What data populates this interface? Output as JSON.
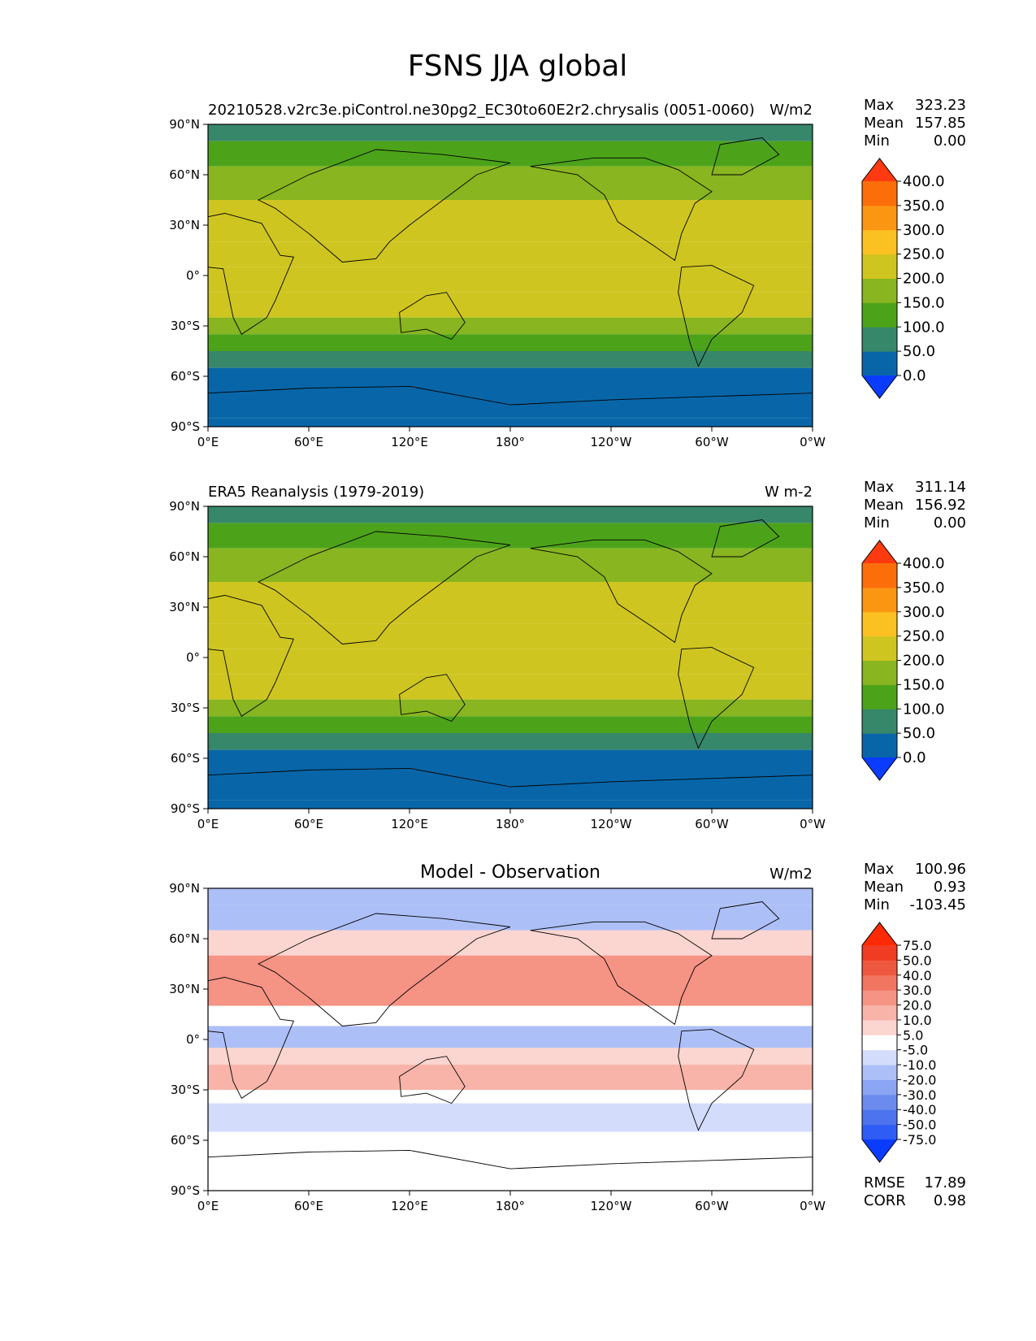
{
  "figure": {
    "title": "FSNS JJA global"
  },
  "chart_data": [
    {
      "type": "heatmap",
      "panel": "model",
      "title": "",
      "left_title": "20210528.v2rc3e.piControl.ne30pg2_EC30to60E2r2.chrysalis (0051-0060)",
      "units": "W/m2",
      "x_ticks": [
        "0°E",
        "60°E",
        "120°E",
        "180°",
        "120°W",
        "60°W",
        "0°W"
      ],
      "y_ticks": [
        "90°N",
        "60°N",
        "30°N",
        "0°",
        "30°S",
        "60°S",
        "90°S"
      ],
      "xlim": [
        0,
        360
      ],
      "ylim": [
        -90,
        90
      ],
      "stats": {
        "labels": [
          "Max",
          "Mean",
          "Min"
        ],
        "values": [
          "323.23",
          "157.85",
          "0.00"
        ]
      },
      "colorbar": {
        "levels": [
          "0.0",
          "50.0",
          "100.0",
          "150.0",
          "200.0",
          "250.0",
          "300.0",
          "350.0",
          "400.0"
        ],
        "colors": [
          "#0a3cff",
          "#0866a8",
          "#37876a",
          "#4ca31a",
          "#88b520",
          "#cfc520",
          "#fbc021",
          "#fb9613",
          "#fb6e0a",
          "#ff3a10"
        ]
      },
      "zonal_bands": [
        {
          "lat": [
            80,
            90
          ],
          "value": 60
        },
        {
          "lat": [
            65,
            80
          ],
          "value": 115
        },
        {
          "lat": [
            45,
            65
          ],
          "value": 170
        },
        {
          "lat": [
            20,
            45
          ],
          "value": 230
        },
        {
          "lat": [
            5,
            20
          ],
          "value": 215
        },
        {
          "lat": [
            -10,
            5
          ],
          "value": 205
        },
        {
          "lat": [
            -25,
            -10
          ],
          "value": 210
        },
        {
          "lat": [
            -35,
            -25
          ],
          "value": 170
        },
        {
          "lat": [
            -45,
            -35
          ],
          "value": 110
        },
        {
          "lat": [
            -55,
            -45
          ],
          "value": 60
        },
        {
          "lat": [
            -85,
            -55
          ],
          "value": 25
        },
        {
          "lat": [
            -90,
            -85
          ],
          "value": 0
        }
      ]
    },
    {
      "type": "heatmap",
      "panel": "reference",
      "title": "",
      "left_title": "ERA5 Reanalysis (1979-2019)",
      "units": "W m-2",
      "x_ticks": [
        "0°E",
        "60°E",
        "120°E",
        "180°",
        "120°W",
        "60°W",
        "0°W"
      ],
      "y_ticks": [
        "90°N",
        "60°N",
        "30°N",
        "0°",
        "30°S",
        "60°S",
        "90°S"
      ],
      "xlim": [
        0,
        360
      ],
      "ylim": [
        -90,
        90
      ],
      "stats": {
        "labels": [
          "Max",
          "Mean",
          "Min"
        ],
        "values": [
          "311.14",
          "156.92",
          "0.00"
        ]
      },
      "colorbar": {
        "levels": [
          "0.0",
          "50.0",
          "100.0",
          "150.0",
          "200.0",
          "250.0",
          "300.0",
          "350.0",
          "400.0"
        ],
        "colors": [
          "#0a3cff",
          "#0866a8",
          "#37876a",
          "#4ca31a",
          "#88b520",
          "#cfc520",
          "#fbc021",
          "#fb9613",
          "#fb6e0a",
          "#ff3a10"
        ]
      },
      "zonal_bands": [
        {
          "lat": [
            80,
            90
          ],
          "value": 90
        },
        {
          "lat": [
            65,
            80
          ],
          "value": 140
        },
        {
          "lat": [
            45,
            65
          ],
          "value": 170
        },
        {
          "lat": [
            20,
            45
          ],
          "value": 220
        },
        {
          "lat": [
            5,
            20
          ],
          "value": 205
        },
        {
          "lat": [
            -10,
            5
          ],
          "value": 200
        },
        {
          "lat": [
            -25,
            -10
          ],
          "value": 210
        },
        {
          "lat": [
            -35,
            -25
          ],
          "value": 170
        },
        {
          "lat": [
            -45,
            -35
          ],
          "value": 110
        },
        {
          "lat": [
            -55,
            -45
          ],
          "value": 60
        },
        {
          "lat": [
            -85,
            -55
          ],
          "value": 25
        },
        {
          "lat": [
            -90,
            -85
          ],
          "value": 0
        }
      ]
    },
    {
      "type": "heatmap",
      "panel": "difference",
      "title": "Model - Observation",
      "left_title": "",
      "units": "W/m2",
      "x_ticks": [
        "0°E",
        "60°E",
        "120°E",
        "180°",
        "120°W",
        "60°W",
        "0°W"
      ],
      "y_ticks": [
        "90°N",
        "60°N",
        "30°N",
        "0°",
        "30°S",
        "60°S",
        "90°S"
      ],
      "xlim": [
        0,
        360
      ],
      "ylim": [
        -90,
        90
      ],
      "stats": {
        "labels": [
          "Max",
          "Mean",
          "Min"
        ],
        "values": [
          "100.96",
          "0.93",
          "-103.45"
        ]
      },
      "extra_stats": {
        "labels": [
          "RMSE",
          "CORR"
        ],
        "values": [
          "17.89",
          "0.98"
        ]
      },
      "colorbar": {
        "levels": [
          "-75.0",
          "-50.0",
          "-40.0",
          "-30.0",
          "-20.0",
          "-10.0",
          "-5.0",
          "5.0",
          "10.0",
          "20.0",
          "30.0",
          "40.0",
          "50.0",
          "75.0"
        ],
        "colors": [
          "#0a3cff",
          "#2e5cf5",
          "#4d73ee",
          "#6b8bef",
          "#8ba4f3",
          "#adbff7",
          "#d3dcfb",
          "#ffffff",
          "#fbd5cf",
          "#f8b4a9",
          "#f59384",
          "#f17561",
          "#ef5840",
          "#f03c22",
          "#ff2a00"
        ]
      },
      "zonal_bands": [
        {
          "lat": [
            80,
            90
          ],
          "value": -15
        },
        {
          "lat": [
            65,
            80
          ],
          "value": -12
        },
        {
          "lat": [
            50,
            65
          ],
          "value": 8
        },
        {
          "lat": [
            20,
            50
          ],
          "value": 22
        },
        {
          "lat": [
            8,
            20
          ],
          "value": 3
        },
        {
          "lat": [
            -5,
            8
          ],
          "value": -12
        },
        {
          "lat": [
            -15,
            -5
          ],
          "value": 7
        },
        {
          "lat": [
            -30,
            -15
          ],
          "value": 12
        },
        {
          "lat": [
            -38,
            -30
          ],
          "value": -3
        },
        {
          "lat": [
            -55,
            -38
          ],
          "value": -8
        },
        {
          "lat": [
            -90,
            -55
          ],
          "value": 0
        }
      ]
    }
  ]
}
